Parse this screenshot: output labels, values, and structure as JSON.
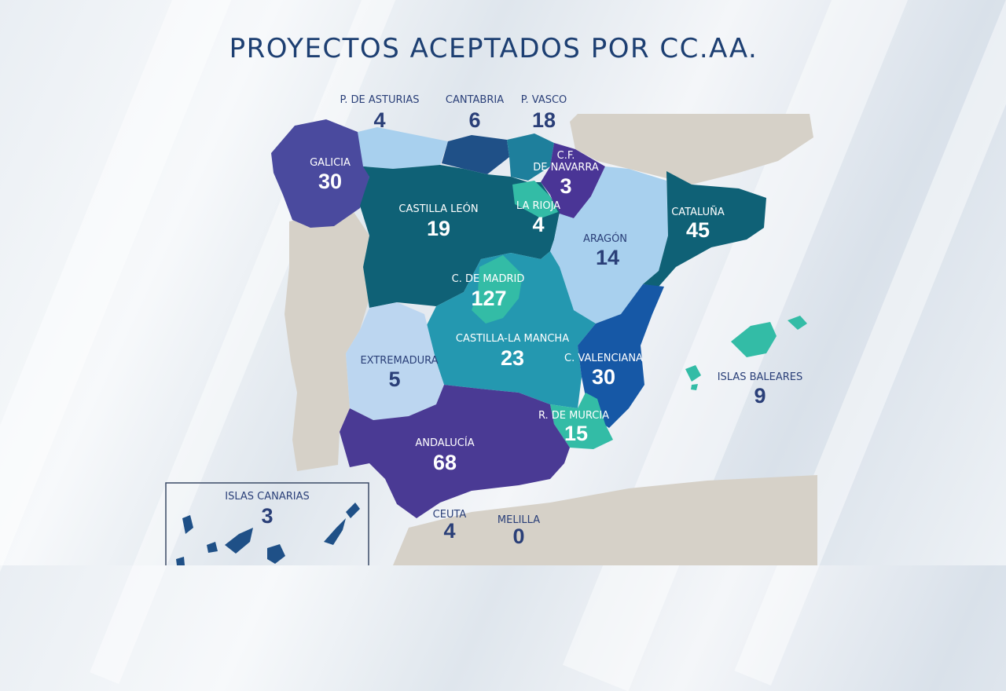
{
  "title": "PROYECTOS ACEPTADOS POR CC.AA.",
  "regions": {
    "asturias": {
      "name": "P. DE ASTURIAS",
      "value": "4"
    },
    "cantabria": {
      "name": "CANTABRIA",
      "value": "6"
    },
    "vasco": {
      "name": "P. VASCO",
      "value": "18"
    },
    "galicia": {
      "name": "GALICIA",
      "value": "30"
    },
    "navarra": {
      "name_line1": "C.F.",
      "name_line2": "DE NAVARRA",
      "value": "3"
    },
    "castilla_leon": {
      "name": "CASTILLA LEÓN",
      "value": "19"
    },
    "la_rioja": {
      "name": "LA RIOJA",
      "value": "4"
    },
    "cataluna": {
      "name": "CATALUÑA",
      "value": "45"
    },
    "aragon": {
      "name": "ARAGÓN",
      "value": "14"
    },
    "madrid": {
      "name": "C. DE MADRID",
      "value": "127"
    },
    "castilla_la_mancha": {
      "name": "CASTILLA-LA MANCHA",
      "value": "23"
    },
    "extremadura": {
      "name": "EXTREMADURA",
      "value": "5"
    },
    "valenciana": {
      "name": "C. VALENCIANA",
      "value": "30"
    },
    "baleares": {
      "name": "ISLAS BALEARES",
      "value": "9"
    },
    "murcia": {
      "name": "R. DE MURCIA",
      "value": "15"
    },
    "andalucia": {
      "name": "ANDALUCÍA",
      "value": "68"
    },
    "canarias": {
      "name": "ISLAS CANARIAS",
      "value": "3"
    },
    "ceuta": {
      "name": "CEUTA",
      "value": "4"
    },
    "melilla": {
      "name": "MELILLA",
      "value": "0"
    }
  },
  "colors": {
    "galicia": "#4a4a9e",
    "asturias": "#a8d0ee",
    "cantabria": "#1f5087",
    "vasco": "#1e7f9c",
    "navarra": "#4a3596",
    "la_rioja": "#33bca6",
    "castilla_leon": "#0f6176",
    "cataluna": "#0f6176",
    "aragon": "#a8d0ee",
    "madrid": "#33bca6",
    "castilla_la_mancha": "#2498b0",
    "extremadura": "#bcd6f0",
    "valenciana": "#1658a6",
    "murcia": "#33bca6",
    "andalucia": "#4a3a94",
    "baleares": "#33bca6",
    "portugal": "#d6d1c8",
    "france": "#d6d1c8",
    "africa": "#d6d1c8",
    "title": "#1d3f72"
  }
}
